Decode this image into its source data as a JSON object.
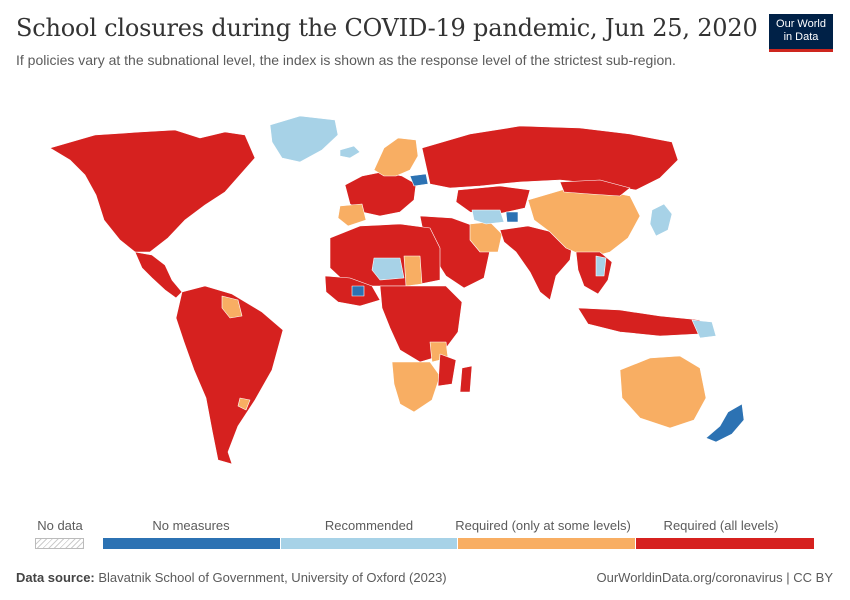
{
  "header": {
    "title": "School closures during the COVID-19 pandemic, Jun 25, 2020",
    "subtitle": "If policies vary at the subnational level, the index is shown as the response level of the strictest sub-region."
  },
  "logo": {
    "line1": "Our World",
    "line2": "in Data"
  },
  "colors": {
    "no_measures": "#2c72b3",
    "recommended": "#a7d2e7",
    "required_some": "#f8ae63",
    "required_all": "#d6211f",
    "ocean": "#ffffff",
    "border": "#ffffff"
  },
  "legend": {
    "no_data": "No data",
    "bins": [
      {
        "label": "No measures",
        "color": "#2c72b3"
      },
      {
        "label": "Recommended",
        "color": "#a7d2e7"
      },
      {
        "label": "Required (only at some levels)",
        "color": "#f8ae63"
      },
      {
        "label": "Required (all levels)",
        "color": "#d6211f"
      }
    ]
  },
  "regions": [
    {
      "name": "North America",
      "level": "required_all"
    },
    {
      "name": "Greenland",
      "level": "recommended"
    },
    {
      "name": "Central America",
      "level": "required_all"
    },
    {
      "name": "South America",
      "level": "required_all"
    },
    {
      "name": "Guyana/Suriname",
      "level": "required_some"
    },
    {
      "name": "Uruguay",
      "level": "required_some"
    },
    {
      "name": "Western Europe",
      "level": "required_all"
    },
    {
      "name": "Iberia",
      "level": "required_some"
    },
    {
      "name": "Scandinavia",
      "level": "required_some"
    },
    {
      "name": "Iceland",
      "level": "recommended"
    },
    {
      "name": "Belarus",
      "level": "no_measures"
    },
    {
      "name": "Russia",
      "level": "required_all"
    },
    {
      "name": "Kazakhstan",
      "level": "required_all"
    },
    {
      "name": "Middle East",
      "level": "required_all"
    },
    {
      "name": "Iran",
      "level": "required_some"
    },
    {
      "name": "Turkmenistan",
      "level": "recommended"
    },
    {
      "name": "Tajikistan",
      "level": "no_measures"
    },
    {
      "name": "India",
      "level": "required_all"
    },
    {
      "name": "China",
      "level": "required_some"
    },
    {
      "name": "Mongolia",
      "level": "required_all"
    },
    {
      "name": "Japan",
      "level": "recommended"
    },
    {
      "name": "Southeast Asia",
      "level": "required_all"
    },
    {
      "name": "Vietnam",
      "level": "recommended"
    },
    {
      "name": "Indonesia",
      "level": "required_all"
    },
    {
      "name": "Papua New Guinea",
      "level": "recommended"
    },
    {
      "name": "North Africa",
      "level": "required_all"
    },
    {
      "name": "Niger",
      "level": "recommended"
    },
    {
      "name": "Chad",
      "level": "required_some"
    },
    {
      "name": "West Africa",
      "level": "required_all"
    },
    {
      "name": "Burkina Faso",
      "level": "no_measures"
    },
    {
      "name": "Central Africa",
      "level": "required_all"
    },
    {
      "name": "Tanzania",
      "level": "required_some"
    },
    {
      "name": "Southern Africa",
      "level": "required_some"
    },
    {
      "name": "Mozambique",
      "level": "required_all"
    },
    {
      "name": "Madagascar",
      "level": "required_all"
    },
    {
      "name": "Australia",
      "level": "required_some"
    },
    {
      "name": "New Zealand",
      "level": "no_measures"
    }
  ],
  "footer": {
    "source_label": "Data source:",
    "source_text": "Blavatnik School of Government, University of Oxford (2023)",
    "right": "OurWorldinData.org/coronavirus | CC BY"
  }
}
